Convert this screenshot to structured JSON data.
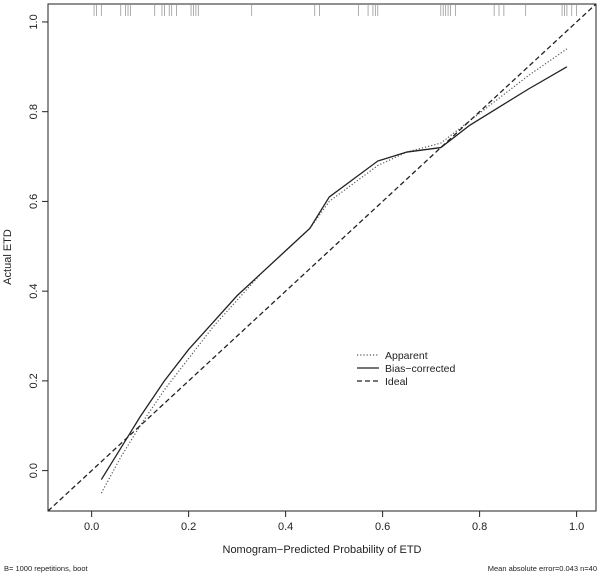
{
  "chart_data": {
    "type": "line",
    "xlabel": "Nomogram−Predicted Probability of ETD",
    "ylabel": "Actual ETD",
    "xlim": [
      -0.09,
      1.04
    ],
    "ylim": [
      -0.09,
      1.04
    ],
    "x_ticks": [
      "0.0",
      "0.2",
      "0.4",
      "0.6",
      "0.8",
      "1.0"
    ],
    "y_ticks": [
      "0.0",
      "0.2",
      "0.4",
      "0.6",
      "0.8",
      "1.0"
    ],
    "x_tick_values": [
      0,
      0.2,
      0.4,
      0.6,
      0.8,
      1.0
    ],
    "y_tick_values": [
      0,
      0.2,
      0.4,
      0.6,
      0.8,
      1.0
    ],
    "grid": false,
    "legend_position": "right-center",
    "series": [
      {
        "name": "Apparent",
        "line_style": "dotted",
        "color": "#555555",
        "x": [
          0.02,
          0.06,
          0.1,
          0.15,
          0.2,
          0.25,
          0.3,
          0.35,
          0.4,
          0.45,
          0.49,
          0.54,
          0.59,
          0.65,
          0.72,
          0.78,
          0.84,
          0.9,
          0.98
        ],
        "y": [
          -0.05,
          0.03,
          0.1,
          0.18,
          0.25,
          0.32,
          0.38,
          0.44,
          0.49,
          0.54,
          0.6,
          0.64,
          0.68,
          0.71,
          0.73,
          0.78,
          0.83,
          0.88,
          0.94
        ]
      },
      {
        "name": "Bias−corrected",
        "line_style": "solid",
        "color": "#222222",
        "x": [
          0.02,
          0.06,
          0.1,
          0.15,
          0.2,
          0.25,
          0.3,
          0.35,
          0.4,
          0.45,
          0.49,
          0.54,
          0.59,
          0.65,
          0.72,
          0.78,
          0.84,
          0.9,
          0.98
        ],
        "y": [
          -0.02,
          0.05,
          0.12,
          0.2,
          0.27,
          0.33,
          0.39,
          0.44,
          0.49,
          0.54,
          0.61,
          0.65,
          0.69,
          0.71,
          0.72,
          0.77,
          0.81,
          0.85,
          0.9
        ]
      },
      {
        "name": "Ideal",
        "line_style": "dashed",
        "color": "#222222",
        "x": [
          -0.09,
          1.04
        ],
        "y": [
          -0.09,
          1.04
        ]
      }
    ],
    "rug_x": [
      0.005,
      0.01,
      0.02,
      0.06,
      0.07,
      0.075,
      0.08,
      0.13,
      0.145,
      0.15,
      0.16,
      0.165,
      0.175,
      0.205,
      0.21,
      0.215,
      0.22,
      0.33,
      0.46,
      0.47,
      0.55,
      0.57,
      0.58,
      0.585,
      0.59,
      0.72,
      0.725,
      0.73,
      0.735,
      0.74,
      0.75,
      0.83,
      0.84,
      0.85,
      0.895,
      0.97,
      0.975,
      0.98,
      0.99,
      1.0
    ]
  },
  "footer": {
    "left": "B= 1000 repetitions, boot",
    "right": "Mean absolute error=0.043 n=40"
  }
}
